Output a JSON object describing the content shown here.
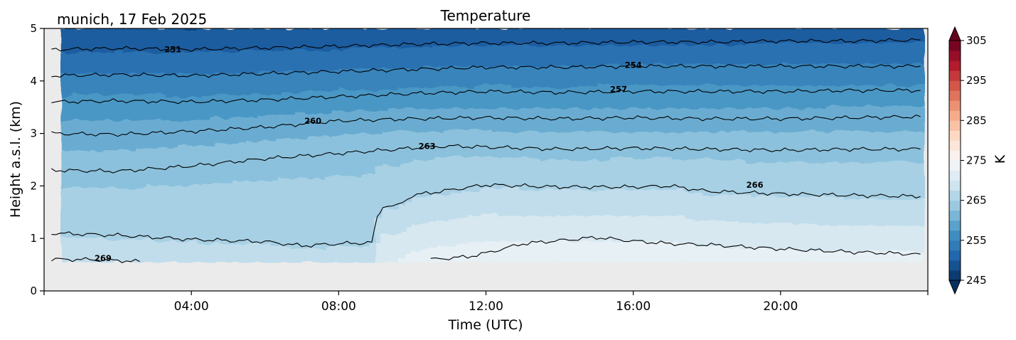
{
  "chart_data": {
    "type": "heatmap",
    "title": "Temperature",
    "subtitle": "munich, 17 Feb 2025",
    "xlabel": "Time (UTC)",
    "ylabel": "Height a.s.l. (km)",
    "xlim": [
      0,
      24
    ],
    "ylim": [
      0,
      5
    ],
    "x_ticks": [
      4,
      8,
      12,
      16,
      20
    ],
    "x_tick_labels": [
      "04:00",
      "08:00",
      "12:00",
      "16:00",
      "20:00"
    ],
    "y_ticks": [
      0,
      1,
      2,
      3,
      4,
      5
    ],
    "y_tick_labels": [
      "0",
      "1",
      "2",
      "3",
      "4",
      "5"
    ],
    "data_bottom_km": 0.55,
    "colorbar": {
      "label": "K",
      "min": 245,
      "max": 305,
      "step": 2.5,
      "extend": "both",
      "ticks": [
        245,
        255,
        265,
        275,
        285,
        295,
        305
      ],
      "tick_labels": [
        "245",
        "255",
        "265",
        "275",
        "285",
        "295",
        "305"
      ]
    },
    "contours": [
      {
        "level": 251,
        "label": "251",
        "label_at": [
          3.5,
          4.6
        ],
        "points": [
          [
            0.2,
            4.6
          ],
          [
            2,
            4.62
          ],
          [
            4,
            4.6
          ],
          [
            6,
            4.63
          ],
          [
            8,
            4.66
          ],
          [
            10,
            4.7
          ],
          [
            12,
            4.72
          ],
          [
            14,
            4.72
          ],
          [
            16,
            4.74
          ],
          [
            18,
            4.74
          ],
          [
            20,
            4.76
          ],
          [
            22,
            4.76
          ],
          [
            23.8,
            4.78
          ]
        ]
      },
      {
        "level": 254,
        "label": "254",
        "label_at": [
          16,
          4.3
        ],
        "points": [
          [
            0.2,
            4.1
          ],
          [
            2,
            4.12
          ],
          [
            4,
            4.1
          ],
          [
            6,
            4.14
          ],
          [
            8,
            4.18
          ],
          [
            10,
            4.22
          ],
          [
            12,
            4.26
          ],
          [
            14,
            4.26
          ],
          [
            16,
            4.28
          ],
          [
            18,
            4.28
          ],
          [
            20,
            4.28
          ],
          [
            22,
            4.28
          ],
          [
            23.8,
            4.28
          ]
        ]
      },
      {
        "level": 257,
        "label": "257",
        "label_at": [
          15.6,
          3.84
        ],
        "points": [
          [
            0.2,
            3.6
          ],
          [
            2,
            3.62
          ],
          [
            4,
            3.6
          ],
          [
            6,
            3.64
          ],
          [
            8,
            3.7
          ],
          [
            10,
            3.76
          ],
          [
            12,
            3.8
          ],
          [
            14,
            3.78
          ],
          [
            16,
            3.8
          ],
          [
            18,
            3.8
          ],
          [
            20,
            3.8
          ],
          [
            22,
            3.82
          ],
          [
            23.8,
            3.82
          ]
        ]
      },
      {
        "level": 260,
        "label": "260",
        "label_at": [
          7.3,
          3.24
        ],
        "points": [
          [
            0.2,
            3.0
          ],
          [
            2,
            2.98
          ],
          [
            4,
            3.04
          ],
          [
            6,
            3.12
          ],
          [
            8,
            3.24
          ],
          [
            10,
            3.28
          ],
          [
            12,
            3.3
          ],
          [
            14,
            3.28
          ],
          [
            16,
            3.3
          ],
          [
            18,
            3.28
          ],
          [
            20,
            3.28
          ],
          [
            22,
            3.3
          ],
          [
            23.8,
            3.32
          ]
        ]
      },
      {
        "level": 263,
        "label": "263",
        "label_at": [
          10.4,
          2.76
        ],
        "points": [
          [
            0.2,
            2.3
          ],
          [
            2,
            2.28
          ],
          [
            4,
            2.38
          ],
          [
            6,
            2.52
          ],
          [
            8,
            2.62
          ],
          [
            10,
            2.72
          ],
          [
            11,
            2.76
          ],
          [
            12,
            2.74
          ],
          [
            14,
            2.7
          ],
          [
            16,
            2.72
          ],
          [
            18,
            2.7
          ],
          [
            20,
            2.68
          ],
          [
            22,
            2.7
          ],
          [
            23.8,
            2.7
          ]
        ]
      },
      {
        "level": 266,
        "label": "266",
        "label_at": [
          19.3,
          2.02
        ],
        "points": [
          [
            0.2,
            1.1
          ],
          [
            2,
            1.06
          ],
          [
            4,
            0.98
          ],
          [
            6,
            0.94
          ],
          [
            7,
            0.86
          ],
          [
            8,
            0.9
          ],
          [
            8.9,
            0.92
          ],
          [
            9.05,
            1.4
          ],
          [
            9.2,
            1.62
          ],
          [
            9.6,
            1.62
          ],
          [
            10,
            1.82
          ],
          [
            11,
            1.92
          ],
          [
            12,
            2.02
          ],
          [
            14,
            1.98
          ],
          [
            16,
            1.98
          ],
          [
            17,
            2.0
          ],
          [
            18,
            1.9
          ],
          [
            20,
            1.85
          ],
          [
            22,
            1.82
          ],
          [
            23.8,
            1.8
          ]
        ]
      },
      {
        "level": 269,
        "label": "269",
        "label_at": [
          1.6,
          0.62
        ],
        "points": [
          [
            0.2,
            0.6
          ],
          [
            1,
            0.6
          ],
          [
            2,
            0.58
          ],
          [
            2.6,
            0.56
          ]
        ]
      },
      {
        "level": 269,
        "label": "",
        "points": [
          [
            10.5,
            0.6
          ],
          [
            11.5,
            0.65
          ],
          [
            12,
            0.72
          ],
          [
            13,
            0.9
          ],
          [
            14,
            0.96
          ],
          [
            15,
            1.02
          ],
          [
            16,
            0.95
          ],
          [
            17,
            0.9
          ],
          [
            18,
            0.88
          ],
          [
            20,
            0.8
          ],
          [
            22,
            0.74
          ],
          [
            23.8,
            0.7
          ]
        ]
      }
    ]
  }
}
